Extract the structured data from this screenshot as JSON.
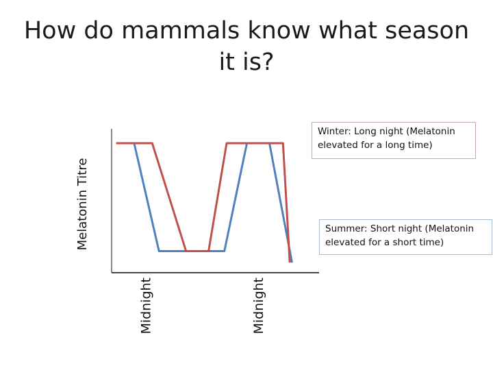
{
  "slide": {
    "title": "How do mammals know what season it is?"
  },
  "chart_data": {
    "type": "line",
    "title": "",
    "xlabel": "",
    "ylabel": "Melatonin Titre",
    "x_ticks": [
      {
        "label": "Midnight",
        "x": 1
      },
      {
        "label": "Midnight",
        "x": 6
      }
    ],
    "xlim": [
      -0.5,
      8.7
    ],
    "ylim": [
      0,
      1
    ],
    "grid": false,
    "series": [
      {
        "color": "#4f81bd",
        "points": [
          [
            0.5,
            0.9
          ],
          [
            1.6,
            0.15
          ],
          [
            4.5,
            0.15
          ],
          [
            5.5,
            0.9
          ],
          [
            6.5,
            0.9
          ],
          [
            7.5,
            0.07
          ]
        ]
      },
      {
        "color": "#c0504d",
        "points": [
          [
            -0.3,
            0.9
          ],
          [
            1.3,
            0.9
          ],
          [
            2.8,
            0.15
          ],
          [
            3.8,
            0.15
          ],
          [
            4.6,
            0.9
          ],
          [
            7.1,
            0.9
          ],
          [
            7.4,
            0.07
          ]
        ]
      }
    ],
    "annotations": [
      {
        "text": "Winter: Long night (Melatonin elevated for a long time)",
        "series_color": "#c0504d"
      },
      {
        "text": "Summer: Short night (Melatonin elevated for a short time)",
        "series_color": "#4f81bd"
      }
    ]
  }
}
